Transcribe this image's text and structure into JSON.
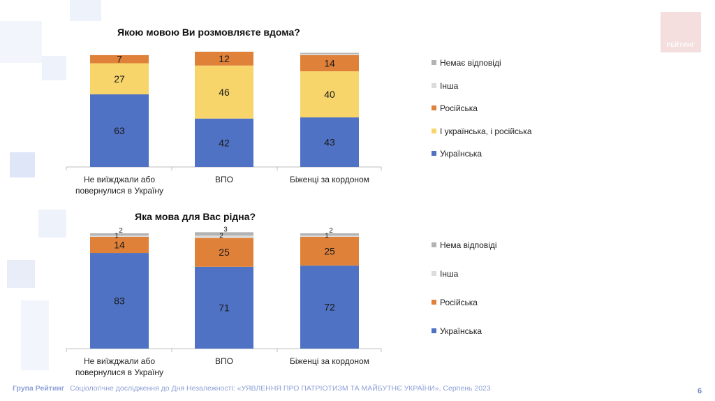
{
  "logo": {
    "text": "РЕЙТИНГ"
  },
  "colors": {
    "ukrainian": "#4f72c4",
    "both": "#f7d56a",
    "russian": "#e0813a",
    "other": "#dcdcdc",
    "no_answer": "#b3b3b3"
  },
  "chart_data": [
    {
      "type": "bar",
      "stacked": true,
      "title": "Якою мовою Ви розмовляєте вдома?",
      "categories": [
        [
          "Не виїжджали або",
          "повернулися в Україну"
        ],
        [
          "ВПО"
        ],
        [
          "Біженці за кордоном"
        ]
      ],
      "series": [
        {
          "name": "Українська",
          "color_key": "ukrainian",
          "values": [
            63,
            42,
            43
          ],
          "labels": [
            "63",
            "42",
            "43"
          ]
        },
        {
          "name": "І українська, і російська",
          "color_key": "both",
          "values": [
            27,
            46,
            40
          ],
          "labels": [
            "27",
            "46",
            "40"
          ]
        },
        {
          "name": "Російська",
          "color_key": "russian",
          "values": [
            7,
            12,
            14
          ],
          "labels": [
            "7",
            "12",
            "14"
          ]
        },
        {
          "name": "Інша",
          "color_key": "other",
          "values": [
            0,
            0,
            1
          ],
          "labels": [
            "",
            "",
            ""
          ]
        },
        {
          "name": "Немає відповіді",
          "color_key": "no_answer",
          "values": [
            0,
            0,
            1
          ],
          "labels": [
            "",
            "",
            ""
          ]
        }
      ],
      "legend_order": [
        "Немає відповіді",
        "Інша",
        "Російська",
        "І українська, і російська",
        "Українська"
      ],
      "ylim": [
        0,
        100
      ]
    },
    {
      "type": "bar",
      "stacked": true,
      "title": "Яка мова для Вас рідна?",
      "categories": [
        [
          "Не виїжджали або",
          "повернулися в Україну"
        ],
        [
          "ВПО"
        ],
        [
          "Біженці за кордоном"
        ]
      ],
      "series": [
        {
          "name": "Українська",
          "color_key": "ukrainian",
          "values": [
            83,
            71,
            72
          ],
          "labels": [
            "83",
            "71",
            "72"
          ]
        },
        {
          "name": "Російська",
          "color_key": "russian",
          "values": [
            14,
            25,
            25
          ],
          "labels": [
            "14",
            "25",
            "25"
          ]
        },
        {
          "name": "Інша",
          "color_key": "other",
          "values": [
            1,
            2,
            1
          ],
          "labels": [
            "1",
            "2",
            "1"
          ]
        },
        {
          "name": "Нема відповіді",
          "color_key": "no_answer",
          "values": [
            2,
            3,
            2
          ],
          "labels": [
            "2",
            "3",
            "2"
          ]
        }
      ],
      "legend_order": [
        "Нема відповіді",
        "Інша",
        "Російська",
        "Українська"
      ],
      "ylim": [
        0,
        100
      ]
    }
  ],
  "footer": {
    "org": "Група Рейтинг",
    "text": "Соціологічне дослідження до Дня Незалежності: «УЯВЛЕННЯ ПРО ПАТРІОТИЗМ ТА МАЙБУТНЄ УКРАЇНИ», Серпень 2023",
    "page": "6"
  }
}
